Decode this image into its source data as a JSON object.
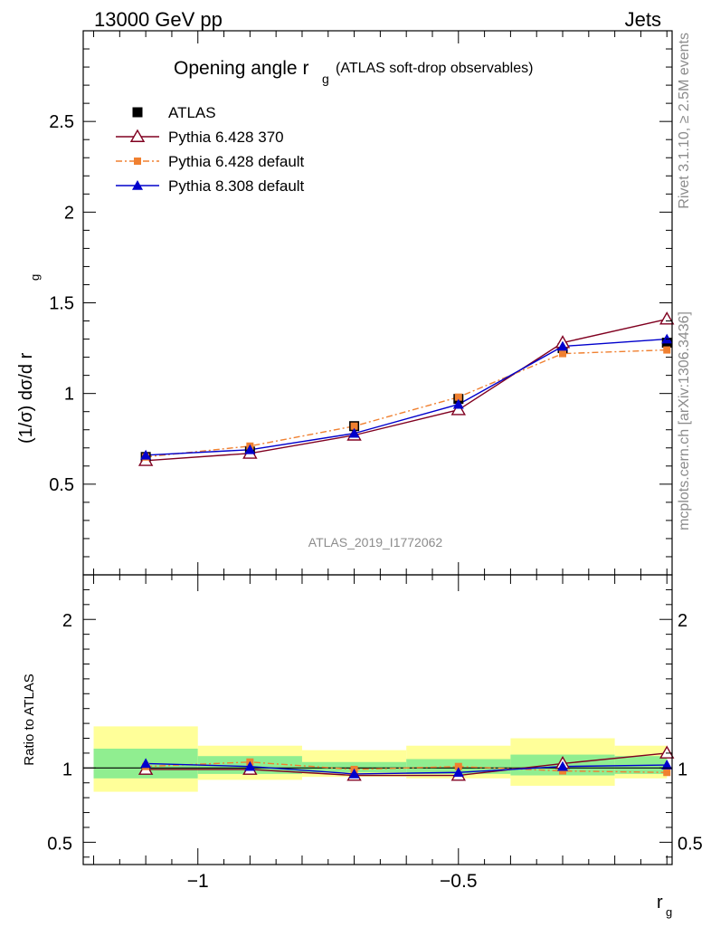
{
  "header": {
    "left": "13000 GeV pp",
    "right": "Jets"
  },
  "watermarks": {
    "rivet": "Rivet 3.1.10, ≥ 2.5M events",
    "mcplots": "mcplots.cern.ch [arXiv:1306.3436]",
    "analysis": "ATLAS_2019_I1772062"
  },
  "chart_data": [
    {
      "type": "line",
      "title": "Opening angle r",
      "title_sub": "g",
      "title_suffix": "(ATLAS soft-drop observables)",
      "ylabel": "(1/σ) dσ/d r",
      "ylabel_sub": "g",
      "xlim": [
        -1.22,
        -0.09
      ],
      "ylim": [
        0,
        3.0
      ],
      "y_ticks": [
        0.5,
        1,
        1.5,
        2,
        2.5
      ],
      "y_tick_labels": [
        "0.5",
        "1",
        "1.5",
        "2",
        "2.5"
      ],
      "legend_position": "top-left",
      "x": [
        -1.1,
        -0.9,
        -0.7,
        -0.5,
        -0.3,
        -0.1
      ],
      "series": [
        {
          "name": "ATLAS",
          "color": "#000000",
          "marker": "filled-square",
          "line": "none",
          "values": [
            0.65,
            0.68,
            0.82,
            0.97,
            1.25,
            1.28
          ]
        },
        {
          "name": "Pythia 6.428 370",
          "color": "#800020",
          "marker": "open-triangle",
          "line": "solid",
          "values": [
            0.63,
            0.67,
            0.77,
            0.91,
            1.28,
            1.41
          ]
        },
        {
          "name": "Pythia 6.428 default",
          "color": "#f08030",
          "marker": "filled-square-small",
          "line": "dashdot",
          "values": [
            0.65,
            0.71,
            0.82,
            0.98,
            1.22,
            1.24
          ]
        },
        {
          "name": "Pythia 8.308 default",
          "color": "#0000cc",
          "marker": "filled-triangle",
          "line": "solid",
          "values": [
            0.66,
            0.69,
            0.78,
            0.94,
            1.26,
            1.3
          ]
        }
      ]
    },
    {
      "type": "line",
      "ylabel": "Ratio to ATLAS",
      "xlabel": "r",
      "xlabel_sub": "g",
      "ylim": [
        0.35,
        2.3
      ],
      "y_ticks": [
        0.5,
        1,
        2
      ],
      "y_tick_labels": [
        "0.5",
        "1",
        "2"
      ],
      "x_ticks": [
        -1,
        -0.5
      ],
      "x_tick_labels": [
        "−1",
        "−0.5"
      ],
      "reference_line": 1,
      "bands": [
        {
          "xlow": -1.2,
          "xhigh": -1.0,
          "inner": [
            0.93,
            1.13
          ],
          "outer": [
            0.84,
            1.28
          ]
        },
        {
          "xlow": -1.0,
          "xhigh": -0.8,
          "inner": [
            0.96,
            1.08
          ],
          "outer": [
            0.92,
            1.15
          ]
        },
        {
          "xlow": -0.8,
          "xhigh": -0.6,
          "inner": [
            0.97,
            1.04
          ],
          "outer": [
            0.94,
            1.12
          ]
        },
        {
          "xlow": -0.6,
          "xhigh": -0.4,
          "inner": [
            0.96,
            1.06
          ],
          "outer": [
            0.93,
            1.15
          ]
        },
        {
          "xlow": -0.4,
          "xhigh": -0.2,
          "inner": [
            0.95,
            1.09
          ],
          "outer": [
            0.88,
            1.2
          ]
        },
        {
          "xlow": -0.2,
          "xhigh": -0.1,
          "inner": [
            0.96,
            1.08
          ],
          "outer": [
            0.93,
            1.15
          ]
        }
      ],
      "series": [
        {
          "name": "Pythia 6.428 370",
          "color": "#800020",
          "marker": "open-triangle",
          "line": "solid",
          "values": [
            0.99,
            0.99,
            0.95,
            0.95,
            1.03,
            1.1
          ]
        },
        {
          "name": "Pythia 6.428 default",
          "color": "#f08030",
          "marker": "filled-square-small",
          "line": "dashdot",
          "values": [
            1.01,
            1.04,
            0.99,
            1.01,
            0.98,
            0.97
          ]
        },
        {
          "name": "Pythia 8.308 default",
          "color": "#0000cc",
          "marker": "filled-triangle",
          "line": "solid",
          "values": [
            1.03,
            1.01,
            0.96,
            0.97,
            1.01,
            1.02
          ]
        }
      ]
    }
  ],
  "colors": {
    "band_inner": "#90ee90",
    "band_outer": "#ffff99",
    "frame": "#000000"
  }
}
